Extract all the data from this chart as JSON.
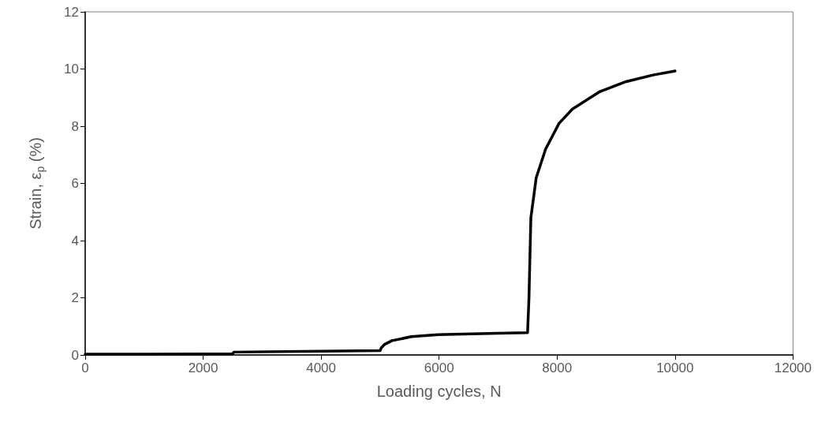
{
  "chart_data": {
    "type": "line",
    "xlabel": "Loading cycles, N",
    "ylabel": "Strain, ε$_{p}$ (%)",
    "xlim": [
      0,
      12000
    ],
    "xticks": [
      0,
      2000,
      4000,
      6000,
      8000,
      10000,
      12000
    ],
    "ylim": [
      0,
      12
    ],
    "yticks": [
      0,
      2,
      4,
      6,
      8,
      10,
      12
    ],
    "grid": false,
    "marker": "none",
    "line_style": "solid",
    "series": [
      {
        "color": "#000000",
        "x": [
          0,
          1000,
          2500,
          2520,
          4000,
          5000,
          5020,
          5076,
          5200,
          5531,
          5986,
          7000,
          7490,
          7500,
          7524,
          7556,
          7647,
          7806,
          8034,
          8261,
          8717,
          9171,
          9626,
          10000
        ],
        "values": [
          0.03,
          0.03,
          0.04,
          0.1,
          0.13,
          0.15,
          0.25,
          0.37,
          0.5,
          0.64,
          0.71,
          0.76,
          0.78,
          0.78,
          2.0,
          4.8,
          6.2,
          7.2,
          8.1,
          8.6,
          9.2,
          9.56,
          9.79,
          9.93
        ]
      }
    ]
  }
}
